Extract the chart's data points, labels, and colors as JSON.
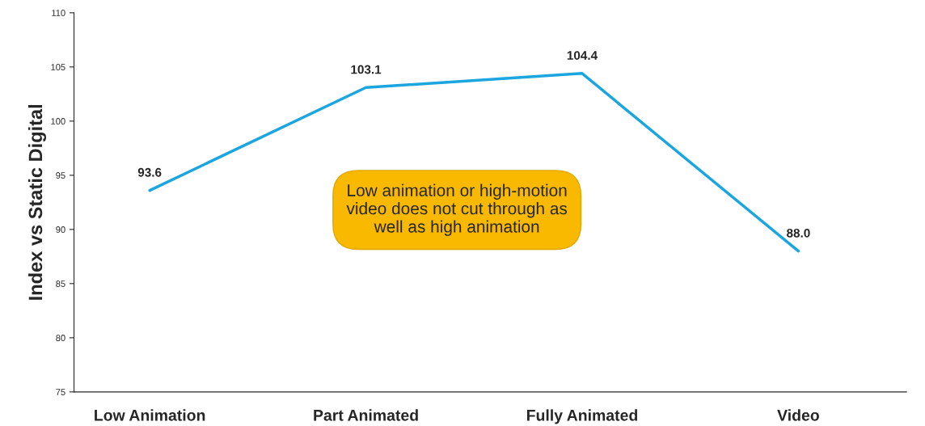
{
  "chart_data": {
    "type": "line",
    "ylabel": "Index vs Static Digital",
    "categories": [
      "Low Animation",
      "Part Animated",
      "Fully Animated",
      "Video"
    ],
    "series": [
      {
        "color": "#1ba6e0",
        "values": [
          93.6,
          103.1,
          104.4,
          88.0
        ],
        "value_labels": [
          "93.6",
          "103.1",
          "104.4",
          "88.0"
        ]
      }
    ],
    "ylim": [
      75,
      110
    ],
    "yticks": [
      75,
      80,
      85,
      90,
      95,
      100,
      105,
      110
    ],
    "grid": false,
    "legend": false,
    "marker": "none",
    "line_style": "solid",
    "annotations": [
      "Low animation or high-motion\nvideo does not cut through as\nwell as high animation"
    ]
  }
}
